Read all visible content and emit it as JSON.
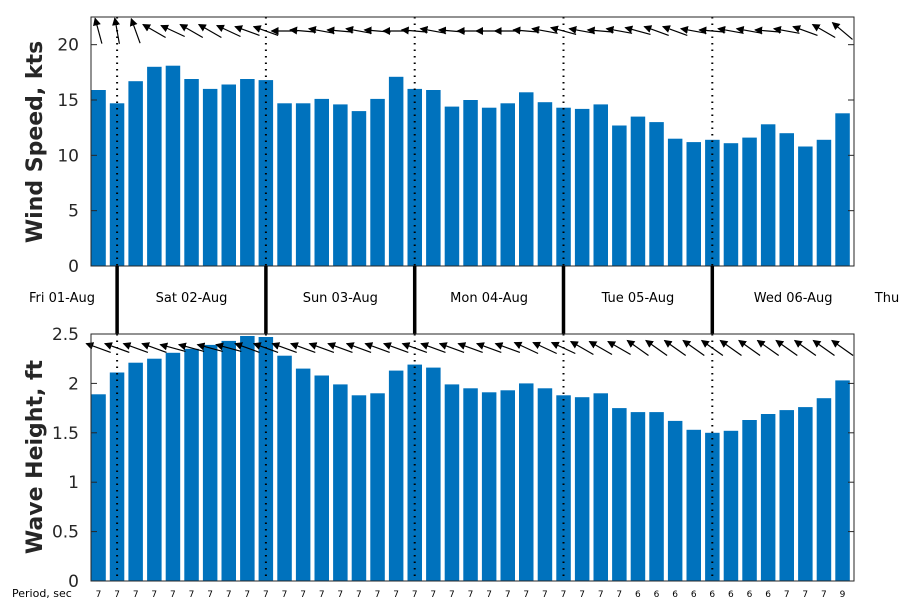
{
  "chart_data": [
    {
      "type": "bar",
      "ylabel": "Wind Speed, kts",
      "ylim": [
        0,
        22.5
      ],
      "yticks": [
        0,
        5,
        10,
        15,
        20
      ],
      "color": "#0072BD",
      "values": [
        15.9,
        14.7,
        16.7,
        18.0,
        18.1,
        16.9,
        16.0,
        16.4,
        16.9,
        16.8,
        14.7,
        14.7,
        15.1,
        14.6,
        14.0,
        15.1,
        17.1,
        16.0,
        15.9,
        14.4,
        15.0,
        14.3,
        14.7,
        15.7,
        14.8,
        14.3,
        14.2,
        14.6,
        12.7,
        13.5,
        13.0,
        11.5,
        11.2,
        11.4,
        11.1,
        11.6,
        12.8,
        12.0,
        10.8,
        11.4,
        13.8
      ],
      "direction_arrows": true
    },
    {
      "type": "bar",
      "ylabel": "Wave Height, ft",
      "ylim": [
        0,
        2.5
      ],
      "yticks": [
        "0",
        "0.5",
        "1",
        "1.5",
        "2",
        "2.5"
      ],
      "color": "#0072BD",
      "values": [
        1.89,
        2.11,
        2.21,
        2.25,
        2.31,
        2.35,
        2.39,
        2.43,
        2.48,
        2.47,
        2.28,
        2.15,
        2.08,
        1.99,
        1.88,
        1.9,
        2.13,
        2.19,
        2.16,
        1.99,
        1.95,
        1.91,
        1.93,
        2.0,
        1.95,
        1.88,
        1.86,
        1.9,
        1.75,
        1.71,
        1.71,
        1.62,
        1.53,
        1.5,
        1.52,
        1.63,
        1.69,
        1.73,
        1.76,
        1.85,
        2.03
      ],
      "direction_arrows": true
    }
  ],
  "days": [
    "Fri 01-Aug",
    "Sat 02-Aug",
    "Sun 03-Aug",
    "Mon 04-Aug",
    "Tue 05-Aug",
    "Wed 06-Aug",
    "Thu"
  ],
  "period_label": "Period, sec",
  "periods": [
    "7",
    "7",
    "7",
    "7",
    "7",
    "7",
    "7",
    "7",
    "7",
    "7",
    "7",
    "7",
    "7",
    "7",
    "7",
    "7",
    "7",
    "7",
    "7",
    "7",
    "7",
    "7",
    "7",
    "7",
    "7",
    "7",
    "7",
    "7",
    "7",
    "6",
    "6",
    "6",
    "6",
    "6",
    "6",
    "6",
    "6",
    "7",
    "7",
    "7",
    "9"
  ],
  "wind_arrow_directions_deg": [
    105,
    100,
    110,
    150,
    155,
    150,
    150,
    155,
    160,
    160,
    180,
    175,
    170,
    175,
    170,
    175,
    180,
    175,
    170,
    175,
    180,
    180,
    180,
    175,
    170,
    165,
    170,
    175,
    170,
    165,
    160,
    160,
    170,
    175,
    170,
    170,
    175,
    170,
    160,
    150,
    140
  ],
  "wave_arrow_directions_deg": [
    160,
    160,
    160,
    160,
    165,
    165,
    165,
    165,
    160,
    160,
    160,
    160,
    160,
    160,
    160,
    160,
    160,
    160,
    160,
    160,
    160,
    160,
    160,
    155,
    155,
    155,
    150,
    150,
    150,
    145,
    145,
    145,
    145,
    145,
    145,
    145,
    145,
    145,
    145,
    145,
    145
  ]
}
